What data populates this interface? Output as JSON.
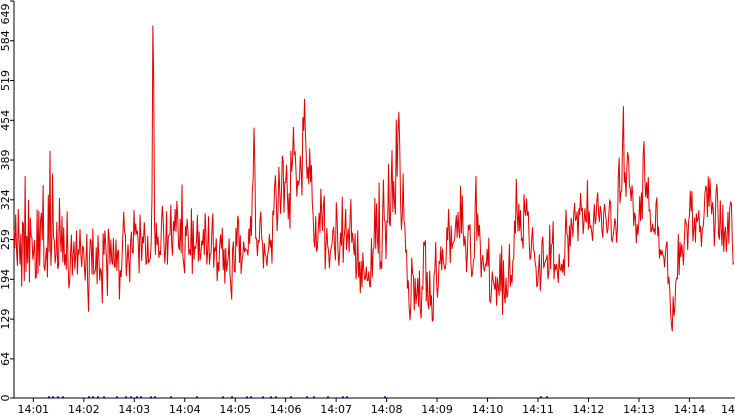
{
  "chart_data": {
    "type": "line",
    "title": "",
    "xlabel": "",
    "ylabel": "",
    "ylim": [
      0,
      649
    ],
    "y_ticks": [
      "0",
      "64",
      "129",
      "194",
      "259",
      "324",
      "389",
      "454",
      "519",
      "584",
      "649"
    ],
    "x_ticks": [
      "14:01",
      "14:02",
      "14:03",
      "14:04",
      "14:05",
      "14:06",
      "14:07",
      "14:08",
      "14:09",
      "14:10",
      "14:11",
      "14:12",
      "14:13",
      "14:14",
      "14"
    ],
    "x_start": "14:00:37",
    "x_end": "14:14:53",
    "line_color": "#e00000",
    "secondary_color": "#0000c8",
    "grid": false,
    "legend": "none",
    "series": [
      {
        "values": [
          274,
          245,
          300,
          240,
          216,
          309,
          259,
          218,
          268,
          182,
          287,
          285,
          191,
          363,
          206,
          265,
          220,
          324,
          189,
          295,
          266,
          261,
          226,
          239,
          258,
          196,
          197,
          308,
          203,
          306,
          216,
          291,
          303,
          258,
          348,
          215,
          208,
          230,
          246,
          197,
          332,
          238,
          404,
          216,
          247,
          367,
          263,
          258,
          220,
          234,
          288,
          211,
          216,
          327,
          262,
          238,
          297,
          222,
          279,
          217,
          235,
          210,
          305,
          223,
          179,
          192,
          236,
          267,
          200,
          234,
          256,
          210,
          235,
          274,
          202,
          243,
          235,
          276,
          234,
          214,
          248,
          246,
          219,
          192,
          226,
          268,
          180,
          141,
          227,
          260,
          256,
          202,
          277,
          202,
          206,
          209,
          246,
          186,
          266,
          231,
          192,
          212,
          205,
          155,
          269,
          234,
          274,
          251,
          223,
          167,
          277,
          262,
          218,
          259,
          225,
          218,
          262,
          216,
          213,
          259,
          208,
          239,
          241,
          161,
          209,
          198,
          225,
          269,
          304,
          271,
          267,
          199,
          222,
          251,
          225,
          189,
          254,
          272,
          238,
          237,
          307,
          266,
          285,
          269,
          272,
          253,
          204,
          300,
          262,
          224,
          264,
          253,
          287,
          262,
          219,
          221,
          265,
          220,
          225,
          228,
          251,
          332,
          609,
          520,
          284,
          234,
          287,
          250,
          264,
          229,
          240,
          234,
          282,
          314,
          293,
          251,
          220,
          248,
          305,
          218,
          262,
          267,
          267,
          316,
          250,
          233,
          289,
          273,
          309,
          271,
          322,
          298,
          248,
          242,
          293,
          237,
          349,
          233,
          219,
          204,
          281,
          265,
          293,
          273,
          234,
          243,
          233,
          310,
          203,
          290,
          226,
          248,
          244,
          258,
          299,
          223,
          272,
          225,
          234,
          257,
          250,
          276,
          234,
          302,
          267,
          218,
          242,
          297,
          218,
          234,
          238,
          279,
          302,
          213,
          246,
          240,
          261,
          191,
          222,
          207,
          250,
          267,
          244,
          278,
          209,
          244,
          187,
          245,
          207,
          218,
          232,
          261,
          202,
          181,
          161,
          243,
          256,
          207,
          206,
          278,
          248,
          298,
          290,
          221,
          266,
          203,
          224,
          234,
          256,
          238,
          244,
          242,
          241,
          233,
          277,
          252,
          297,
          265,
          337,
          358,
          442,
          384,
          261,
          261,
          232,
          258,
          254,
          291,
          305,
          262,
          253,
          212,
          253,
          236,
          231,
          216,
          234,
          244,
          268,
          246,
          258,
          220,
          306,
          299,
          345,
          364,
          325,
          273,
          306,
          378,
          341,
          301,
          335,
          396,
          388,
          303,
          352,
          352,
          381,
          332,
          292,
          335,
          277,
          404,
          370,
          389,
          443,
          397,
          403,
          371,
          329,
          356,
          348,
          357,
          396,
          372,
          331,
          459,
          437,
          489,
          433,
          395,
          358,
          378,
          349,
          408,
          353,
          381,
          320,
          298,
          256,
          246,
          297,
          239,
          245,
          277,
          303,
          270,
          342,
          301,
          273,
          315,
          331,
          210,
          250,
          278,
          249,
          240,
          212,
          236,
          245,
          252,
          273,
          280,
          244,
          225,
          320,
          293,
          241,
          216,
          238,
          270,
          249,
          329,
          221,
          260,
          277,
          309,
          242,
          264,
          277,
          238,
          291,
          325,
          254,
          270,
          250,
          233,
          269,
          194,
          213,
          274,
          197,
          223,
          171,
          224,
          181,
          238,
          211,
          194,
          195,
          215,
          192,
          192,
          207,
          183,
          182,
          261,
          197,
          241,
          248,
          327,
          244,
          318,
          260,
          236,
          352,
          210,
          223,
          211,
          291,
          357,
          292,
          288,
          227,
          290,
          287,
          383,
          286,
          281,
          344,
          405,
          304,
          355,
          318,
          300,
          455,
          362,
          436,
          468,
          415,
          320,
          275,
          300,
          367,
          289,
          282,
          239,
          241,
          179,
          192,
          149,
          127,
          151,
          229,
          204,
          199,
          143,
          196,
          154,
          170,
          196,
          149,
          208,
          144,
          130,
          181,
          179,
          255,
          251,
          258,
          158,
          206,
          153,
          145,
          208,
          151,
          168,
          125,
          128,
          202,
          208,
          255,
          191,
          164,
          185,
          224,
          219,
          248,
          209,
          244,
          223,
          214,
          210,
          221,
          279,
          258,
          309,
          271,
          221,
          282,
          244,
          252,
          255,
          258,
          280,
          299,
          262,
          304,
          273,
          261,
          347,
          269,
          331,
          271,
          248,
          265,
          247,
          206,
          237,
          283,
          275,
          284,
          223,
          198,
          204,
          225,
          229,
          313,
          363,
          257,
          302,
          264,
          283,
          252,
          197,
          226,
          234,
          212,
          207,
          219,
          217,
          244,
          215,
          262,
          160,
          155,
          175,
          207,
          192,
          186,
          177,
          199,
          151,
          197,
          181,
          167,
          236,
          174,
          249,
          136,
          225,
          169,
          155,
          197,
          164,
          169,
          206,
          252,
          182,
          201,
          187,
          225,
          227,
          290,
          269,
          358,
          304,
          272,
          318,
          273,
          307,
          257,
          260,
          244,
          333,
          307,
          298,
          326,
          298,
          305,
          257,
          226,
          231,
          261,
          279,
          242,
          239,
          222,
          213,
          181,
          186,
          211,
          235,
          175,
          199,
          256,
          264,
          212,
          219,
          224,
          227,
          234,
          194,
          206,
          283,
          211,
          251,
          252,
          289,
          194,
          219,
          209,
          219,
          206,
          188,
          236,
          211,
          209,
          219,
          205,
          227,
          200,
          261,
          308,
          269,
          265,
          214,
          282,
          248,
          294,
          283,
          263,
          299,
          319,
          290,
          293,
          305,
          256,
          310,
          299,
          335,
          305,
          311,
          268,
          287,
          310,
          290,
          287,
          356,
          275,
          305,
          278,
          282,
          271,
          257,
          289,
          317,
          284,
          292,
          322,
          336,
          301,
          288,
          314,
          304,
          273,
          262,
          302,
          317,
          301,
          289,
          269,
          276,
          302,
          323,
          320,
          261,
          255,
          266,
          277,
          294,
          285,
          254,
          277,
          363,
          393,
          318,
          337,
          338,
          418,
          477,
          352,
          369,
          329,
          376,
          402,
          390,
          345,
          343,
          322,
          348,
          331,
          281,
          303,
          296,
          253,
          284,
          267,
          288,
          330,
          289,
          336,
          292,
          397,
          420,
          356,
          328,
          353,
          326,
          361,
          305,
          308,
          271,
          274,
          285,
          273,
          276,
          267,
          318,
          328,
          265,
          280,
          228,
          243,
          233,
          242,
          234,
          231,
          214,
          237,
          251,
          256,
          186,
          198,
          179,
          141,
          120,
          109,
          166,
          134,
          147,
          189,
          196,
          195,
          268,
          201,
          255,
          230,
          252,
          239,
          217,
          256,
          293,
          287,
          280,
          242,
          287,
          299,
          339,
          305,
          338,
          256,
          274,
          295,
          254,
          302,
          288,
          293,
          307,
          271,
          281,
          247,
          276,
          280,
          297,
          333,
          346,
          344,
          296,
          362,
          313,
          359,
          325,
          300,
          320,
          306,
          248,
          284,
          335,
          350,
          323,
          266,
          259,
          323,
          274,
          249,
          316,
          239,
          269,
          280,
          239,
          264,
          304,
          252,
          309,
          320,
          318,
          256,
          219,
          220
        ]
      }
    ]
  }
}
